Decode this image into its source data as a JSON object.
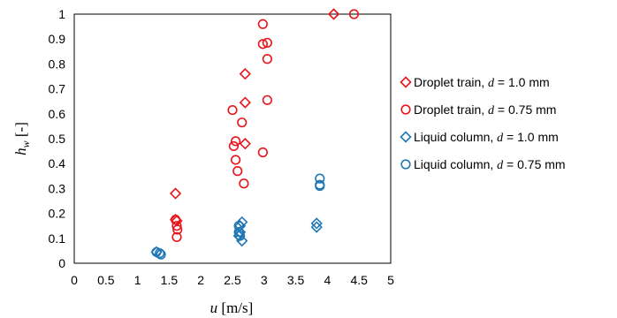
{
  "chart_data": {
    "type": "scatter",
    "title": "",
    "xlabel": {
      "var": "u",
      "unit": " [m/s]"
    },
    "ylabel": {
      "var": "h",
      "sub": "w",
      "unit": " [-]"
    },
    "xlim": [
      0,
      5
    ],
    "ylim": [
      0,
      1
    ],
    "xticks": [
      "0",
      "0.5",
      "1",
      "1.5",
      "2",
      "2.5",
      "3",
      "3.5",
      "4",
      "4.5",
      "5"
    ],
    "yticks": [
      "0",
      "0.1",
      "0.2",
      "0.3",
      "0.4",
      "0.5",
      "0.6",
      "0.7",
      "0.8",
      "0.9",
      "1"
    ],
    "grid": false,
    "legend_position": "right",
    "colors": {
      "red": "#e8141b",
      "blue": "#1f77b4"
    },
    "series": [
      {
        "name": "Droplet train, d = 1.0 mm",
        "legend": {
          "pre": "Droplet train, ",
          "var": "d",
          "post": " = 1.0 mm"
        },
        "color": "red",
        "marker": "diamond",
        "points": [
          [
            1.6,
            0.28
          ],
          [
            1.6,
            0.175
          ],
          [
            1.62,
            0.17
          ],
          [
            2.7,
            0.76
          ],
          [
            2.7,
            0.645
          ],
          [
            2.7,
            0.48
          ],
          [
            4.1,
            1.0
          ]
        ]
      },
      {
        "name": "Droplet train, d = 0.75 mm",
        "legend": {
          "pre": "Droplet train, ",
          "var": "d",
          "post": " = 0.75 mm"
        },
        "color": "red",
        "marker": "circle",
        "points": [
          [
            1.6,
            0.175
          ],
          [
            1.62,
            0.15
          ],
          [
            1.63,
            0.135
          ],
          [
            1.62,
            0.105
          ],
          [
            2.5,
            0.615
          ],
          [
            2.55,
            0.49
          ],
          [
            2.52,
            0.47
          ],
          [
            2.55,
            0.415
          ],
          [
            2.58,
            0.37
          ],
          [
            2.65,
            0.565
          ],
          [
            2.68,
            0.32
          ],
          [
            2.98,
            0.96
          ],
          [
            2.98,
            0.88
          ],
          [
            3.05,
            0.885
          ],
          [
            3.05,
            0.82
          ],
          [
            3.05,
            0.655
          ],
          [
            2.98,
            0.445
          ],
          [
            4.42,
            1.0
          ]
        ]
      },
      {
        "name": "Liquid column, d = 1.0 mm",
        "legend": {
          "pre": "Liquid column, ",
          "var": "d",
          "post": " = 1.0 mm"
        },
        "color": "blue",
        "marker": "diamond",
        "points": [
          [
            1.3,
            0.045
          ],
          [
            2.62,
            0.15
          ],
          [
            2.65,
            0.165
          ],
          [
            2.62,
            0.125
          ],
          [
            2.6,
            0.11
          ],
          [
            2.65,
            0.09
          ],
          [
            3.83,
            0.16
          ],
          [
            3.83,
            0.145
          ]
        ]
      },
      {
        "name": "Liquid column, d = 0.75 mm",
        "legend": {
          "pre": "Liquid column, ",
          "var": "d",
          "post": " = 0.75 mm"
        },
        "color": "blue",
        "marker": "circle",
        "points": [
          [
            1.3,
            0.045
          ],
          [
            1.35,
            0.04
          ],
          [
            1.37,
            0.035
          ],
          [
            2.6,
            0.15
          ],
          [
            2.6,
            0.125
          ],
          [
            2.62,
            0.11
          ],
          [
            3.88,
            0.34
          ],
          [
            3.88,
            0.315
          ],
          [
            3.88,
            0.31
          ]
        ]
      }
    ]
  }
}
